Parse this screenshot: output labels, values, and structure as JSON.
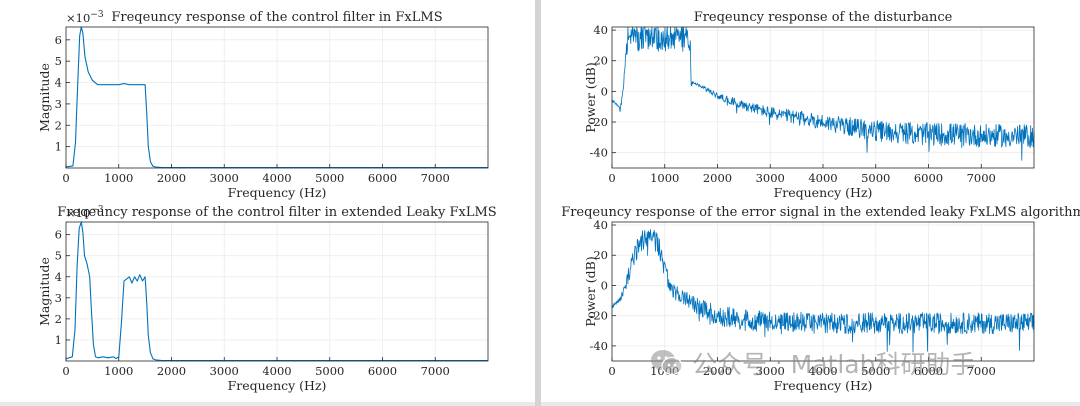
{
  "colors": {
    "line": "#0072bd",
    "axis": "#262626",
    "grid": "#ebebeb",
    "background": "#ffffff"
  },
  "watermark": {
    "icon": "wechat-icon",
    "account": "公众号",
    "separator": "·",
    "name": "Matlab科研助手"
  },
  "chart_data": [
    {
      "id": "tl",
      "type": "line",
      "title": "Freqeuncy response of the control filter in FxLMS",
      "xlabel": "Frequency (Hz)",
      "ylabel": "Magnitude",
      "exponent": "×10",
      "exponent_power": "−3",
      "xlim": [
        0,
        8000
      ],
      "ylim": [
        0,
        0.0066
      ],
      "xticks": [
        0,
        1000,
        2000,
        3000,
        4000,
        5000,
        6000,
        7000
      ],
      "xtick_labels": [
        "0",
        "1000",
        "2000",
        "3000",
        "4000",
        "5000",
        "6000",
        "7000"
      ],
      "yticks": [
        0.001,
        0.002,
        0.003,
        0.004,
        0.005,
        0.006
      ],
      "ytick_labels": [
        "1",
        "2",
        "3",
        "4",
        "5",
        "6"
      ],
      "x": [
        0,
        130,
        180,
        220,
        260,
        290,
        320,
        360,
        420,
        500,
        600,
        700,
        800,
        900,
        1000,
        1100,
        1200,
        1300,
        1400,
        1480,
        1500,
        1530,
        1560,
        1600,
        1650,
        1700,
        1800,
        2000,
        4000,
        6000,
        8000
      ],
      "y": [
        5e-05,
        0.0001,
        0.0012,
        0.0038,
        0.0062,
        0.0068,
        0.0063,
        0.0052,
        0.0045,
        0.0041,
        0.0039,
        0.0039,
        0.0039,
        0.0039,
        0.0039,
        0.00395,
        0.0039,
        0.0039,
        0.0039,
        0.0039,
        0.0039,
        0.0026,
        0.001,
        0.0003,
        8e-05,
        4e-05,
        3e-05,
        2e-05,
        2e-05,
        2e-05,
        2e-05
      ]
    },
    {
      "id": "bl",
      "type": "line",
      "title": "Freqeuncy response of the control filter in extended Leaky FxLMS",
      "xlabel": "Frequency (Hz)",
      "ylabel": "Magnitude",
      "exponent": "×10",
      "exponent_power": "−3",
      "xlim": [
        0,
        8000
      ],
      "ylim": [
        0,
        0.0066
      ],
      "xticks": [
        0,
        1000,
        2000,
        3000,
        4000,
        5000,
        6000,
        7000
      ],
      "xtick_labels": [
        "0",
        "1000",
        "2000",
        "3000",
        "4000",
        "5000",
        "6000",
        "7000"
      ],
      "yticks": [
        0.001,
        0.002,
        0.003,
        0.004,
        0.005,
        0.006
      ],
      "ytick_labels": [
        "1",
        "2",
        "3",
        "4",
        "5",
        "6"
      ],
      "x": [
        0,
        120,
        170,
        210,
        250,
        290,
        320,
        350,
        400,
        450,
        480,
        520,
        560,
        600,
        700,
        800,
        900,
        950,
        1000,
        1050,
        1100,
        1150,
        1200,
        1250,
        1300,
        1350,
        1400,
        1450,
        1500,
        1530,
        1560,
        1600,
        1650,
        1700,
        1800,
        2000,
        4000,
        6000,
        8000
      ],
      "y": [
        0.0001,
        0.0002,
        0.0015,
        0.0045,
        0.0063,
        0.0068,
        0.0061,
        0.005,
        0.0046,
        0.004,
        0.0025,
        0.0008,
        0.0002,
        0.00015,
        0.0002,
        0.00015,
        0.0002,
        0.00012,
        0.0002,
        0.0018,
        0.0038,
        0.0039,
        0.004,
        0.0037,
        0.004,
        0.0038,
        0.0041,
        0.0038,
        0.004,
        0.0028,
        0.0012,
        0.0004,
        0.0001,
        5e-05,
        3e-05,
        2e-05,
        2e-05,
        2e-05,
        2e-05
      ]
    },
    {
      "id": "tr",
      "type": "line",
      "title": "Freqeuncy response of the disturbance",
      "xlabel": "Frequency (Hz)",
      "ylabel": "Power (dB)",
      "xlim": [
        0,
        8000
      ],
      "ylim": [
        -50,
        42
      ],
      "xticks": [
        0,
        1000,
        2000,
        3000,
        4000,
        5000,
        6000,
        7000
      ],
      "xtick_labels": [
        "0",
        "1000",
        "2000",
        "3000",
        "4000",
        "5000",
        "6000",
        "7000"
      ],
      "yticks": [
        -40,
        -20,
        0,
        20,
        40
      ],
      "ytick_labels": [
        "-40",
        "-20",
        "0",
        "20",
        "40"
      ],
      "x": [
        0,
        80,
        150,
        200,
        250,
        300,
        400,
        600,
        800,
        1000,
        1200,
        1400,
        1480,
        1500,
        1520,
        1600,
        1800,
        2000,
        2500,
        3000,
        3500,
        4000,
        4500,
        5000,
        5500,
        6000,
        6500,
        7000,
        7500,
        8000
      ],
      "y": [
        -6,
        -8,
        -12,
        -2,
        18,
        34,
        35,
        35,
        35,
        35,
        35,
        35,
        34,
        3,
        6,
        5,
        1,
        -3,
        -9,
        -14,
        -17,
        -20,
        -23,
        -26,
        -27,
        -28,
        -28,
        -29,
        -29,
        -29
      ],
      "noise_amplitude": [
        1,
        1,
        2,
        3,
        6,
        8,
        9,
        9,
        9,
        9,
        9,
        9,
        8,
        1,
        1,
        1,
        1.5,
        2,
        3,
        4,
        4.5,
        5,
        6,
        7,
        7,
        7.5,
        7.5,
        7.5,
        7.5,
        7.5
      ]
    },
    {
      "id": "br",
      "type": "line",
      "title": "Freqeuncy response of the error signal in the extended leaky FxLMS algorithm",
      "xlabel": "Frequency (Hz)",
      "ylabel": "Power (dB)",
      "xlim": [
        0,
        8000
      ],
      "ylim": [
        -50,
        42
      ],
      "xticks": [
        0,
        1000,
        2000,
        3000,
        4000,
        5000,
        6000,
        7000
      ],
      "xtick_labels": [
        "0",
        "1000",
        "2000",
        "3000",
        "4000",
        "5000",
        "6000",
        "7000"
      ],
      "yticks": [
        -40,
        -20,
        0,
        20,
        40
      ],
      "ytick_labels": [
        "-40",
        "-20",
        "0",
        "20",
        "40"
      ],
      "x": [
        0,
        100,
        200,
        300,
        400,
        500,
        600,
        700,
        800,
        900,
        1000,
        1100,
        1200,
        1400,
        1600,
        1800,
        2000,
        2500,
        3000,
        4000,
        5000,
        6000,
        7000,
        8000
      ],
      "y": [
        -14,
        -11,
        -6,
        5,
        17,
        27,
        31,
        32,
        31,
        25,
        10,
        0,
        -5,
        -9,
        -13,
        -17,
        -20,
        -23,
        -24,
        -25,
        -25,
        -25,
        -25,
        -25
      ],
      "noise_amplitude": [
        1,
        1.5,
        3,
        5,
        6,
        7,
        7,
        7,
        7,
        7,
        6,
        5,
        5,
        5,
        5.5,
        6,
        7,
        7,
        7,
        7,
        7,
        7,
        7,
        7
      ]
    }
  ]
}
